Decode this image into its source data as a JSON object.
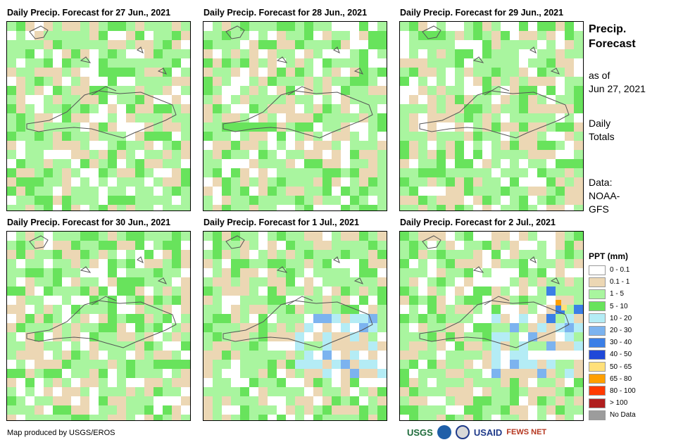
{
  "panels": [
    {
      "title": "Daily Precip. Forecast for 27 Jun., 2021"
    },
    {
      "title": "Daily Precip. Forecast for 28 Jun., 2021"
    },
    {
      "title": "Daily Precip. Forecast for 29 Jun., 2021"
    },
    {
      "title": "Daily Precip. Forecast for 30 Jun., 2021"
    },
    {
      "title": "Daily Precip. Forecast for 1 Jul., 2021"
    },
    {
      "title": "Daily Precip. Forecast for 2 Jul., 2021"
    }
  ],
  "side": {
    "title_line1": "Precip.",
    "title_line2": "Forecast",
    "asof_line1": "as of",
    "asof_line2": "Jun 27, 2021",
    "totals_line1": "Daily",
    "totals_line2": "Totals",
    "data_line1": "Data:",
    "data_line2": "NOAA-",
    "data_line3": "GFS"
  },
  "legend": {
    "title": "PPT (mm)",
    "items": [
      {
        "label": "0 - 0.1",
        "color": "#ffffff"
      },
      {
        "label": "0.1 - 1",
        "color": "#ecd7b4"
      },
      {
        "label": "1 - 5",
        "color": "#a9f59f"
      },
      {
        "label": "5 - 10",
        "color": "#68e35c"
      },
      {
        "label": "10 - 20",
        "color": "#b4ecf5"
      },
      {
        "label": "20 - 30",
        "color": "#7cb3ef"
      },
      {
        "label": "30 - 40",
        "color": "#3b7fe6"
      },
      {
        "label": "40 - 50",
        "color": "#1f48d8"
      },
      {
        "label": "50 - 65",
        "color": "#ffe07a"
      },
      {
        "label": "65 - 80",
        "color": "#ff9f00"
      },
      {
        "label": "80 - 100",
        "color": "#ff3a00"
      },
      {
        "label": "> 100",
        "color": "#b01e1e"
      },
      {
        "label": "No Data",
        "color": "#9c9c9c"
      }
    ]
  },
  "footer": {
    "credit": "Map produced by USGS/EROS"
  },
  "logos": {
    "usgs": "USGS",
    "usaid": "USAID",
    "fewsnet": "FEWS NET"
  }
}
